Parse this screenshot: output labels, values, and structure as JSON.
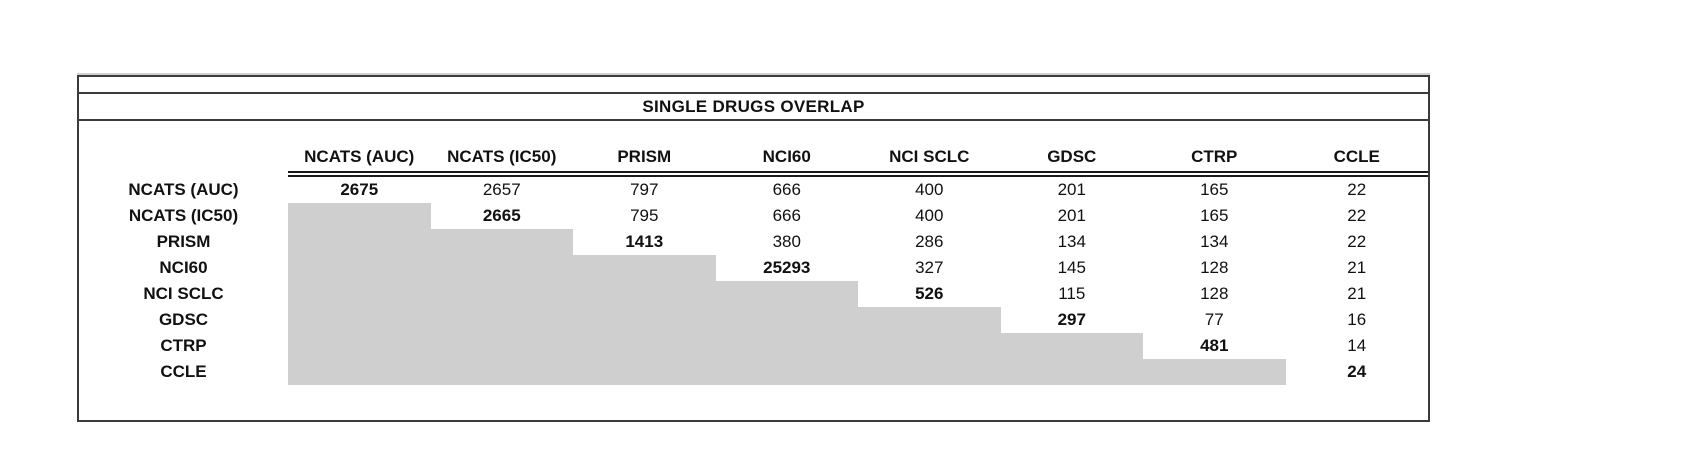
{
  "page": {
    "background": "#ffffff"
  },
  "table": {
    "title": "SINGLE DRUGS OVERLAP",
    "columns": [
      "NCATS (AUC)",
      "NCATS (IC50)",
      "PRISM",
      "NCI60",
      "NCI SCLC",
      "GDSC",
      "CTRP",
      "CCLE"
    ],
    "rows": [
      {
        "label": "NCATS (AUC)",
        "values": [
          "2675",
          "2657",
          "797",
          "666",
          "400",
          "201",
          "165",
          "22"
        ]
      },
      {
        "label": "NCATS (IC50)",
        "values": [
          "",
          "2665",
          "795",
          "666",
          "400",
          "201",
          "165",
          "22"
        ]
      },
      {
        "label": "PRISM",
        "values": [
          "",
          "",
          "1413",
          "380",
          "286",
          "134",
          "134",
          "22"
        ]
      },
      {
        "label": "NCI60",
        "values": [
          "",
          "",
          "",
          "25293",
          "327",
          "145",
          "128",
          "21"
        ]
      },
      {
        "label": "NCI SCLC",
        "values": [
          "",
          "",
          "",
          "",
          "526",
          "115",
          "128",
          "21"
        ]
      },
      {
        "label": "GDSC",
        "values": [
          "",
          "",
          "",
          "",
          "",
          "297",
          "77",
          "16"
        ]
      },
      {
        "label": "CTRP",
        "values": [
          "",
          "",
          "",
          "",
          "",
          "",
          "481",
          "14"
        ]
      },
      {
        "label": "CCLE",
        "values": [
          "",
          "",
          "",
          "",
          "",
          "",
          "",
          "24"
        ]
      }
    ],
    "colors": {
      "shaded_cell": "#d0cfd0",
      "border": "#3b3b3b",
      "text": "#111111"
    }
  },
  "chart_data": {
    "type": "table",
    "title": "SINGLE DRUGS OVERLAP",
    "columns": [
      "NCATS (AUC)",
      "NCATS (IC50)",
      "PRISM",
      "NCI60",
      "NCI SCLC",
      "GDSC",
      "CTRP",
      "CCLE"
    ],
    "row_labels": [
      "NCATS (AUC)",
      "NCATS (IC50)",
      "PRISM",
      "NCI60",
      "NCI SCLC",
      "GDSC",
      "CTRP",
      "CCLE"
    ],
    "matrix": [
      [
        2675,
        2657,
        797,
        666,
        400,
        201,
        165,
        22
      ],
      [
        null,
        2665,
        795,
        666,
        400,
        201,
        165,
        22
      ],
      [
        null,
        null,
        1413,
        380,
        286,
        134,
        134,
        22
      ],
      [
        null,
        null,
        null,
        25293,
        327,
        145,
        128,
        21
      ],
      [
        null,
        null,
        null,
        null,
        526,
        115,
        128,
        21
      ],
      [
        null,
        null,
        null,
        null,
        null,
        297,
        77,
        16
      ],
      [
        null,
        null,
        null,
        null,
        null,
        null,
        481,
        14
      ],
      [
        null,
        null,
        null,
        null,
        null,
        null,
        null,
        24
      ]
    ],
    "layout": "upper-triangular matrix; lower triangle shaded gray; diagonal values bold; double rule under column headers"
  }
}
